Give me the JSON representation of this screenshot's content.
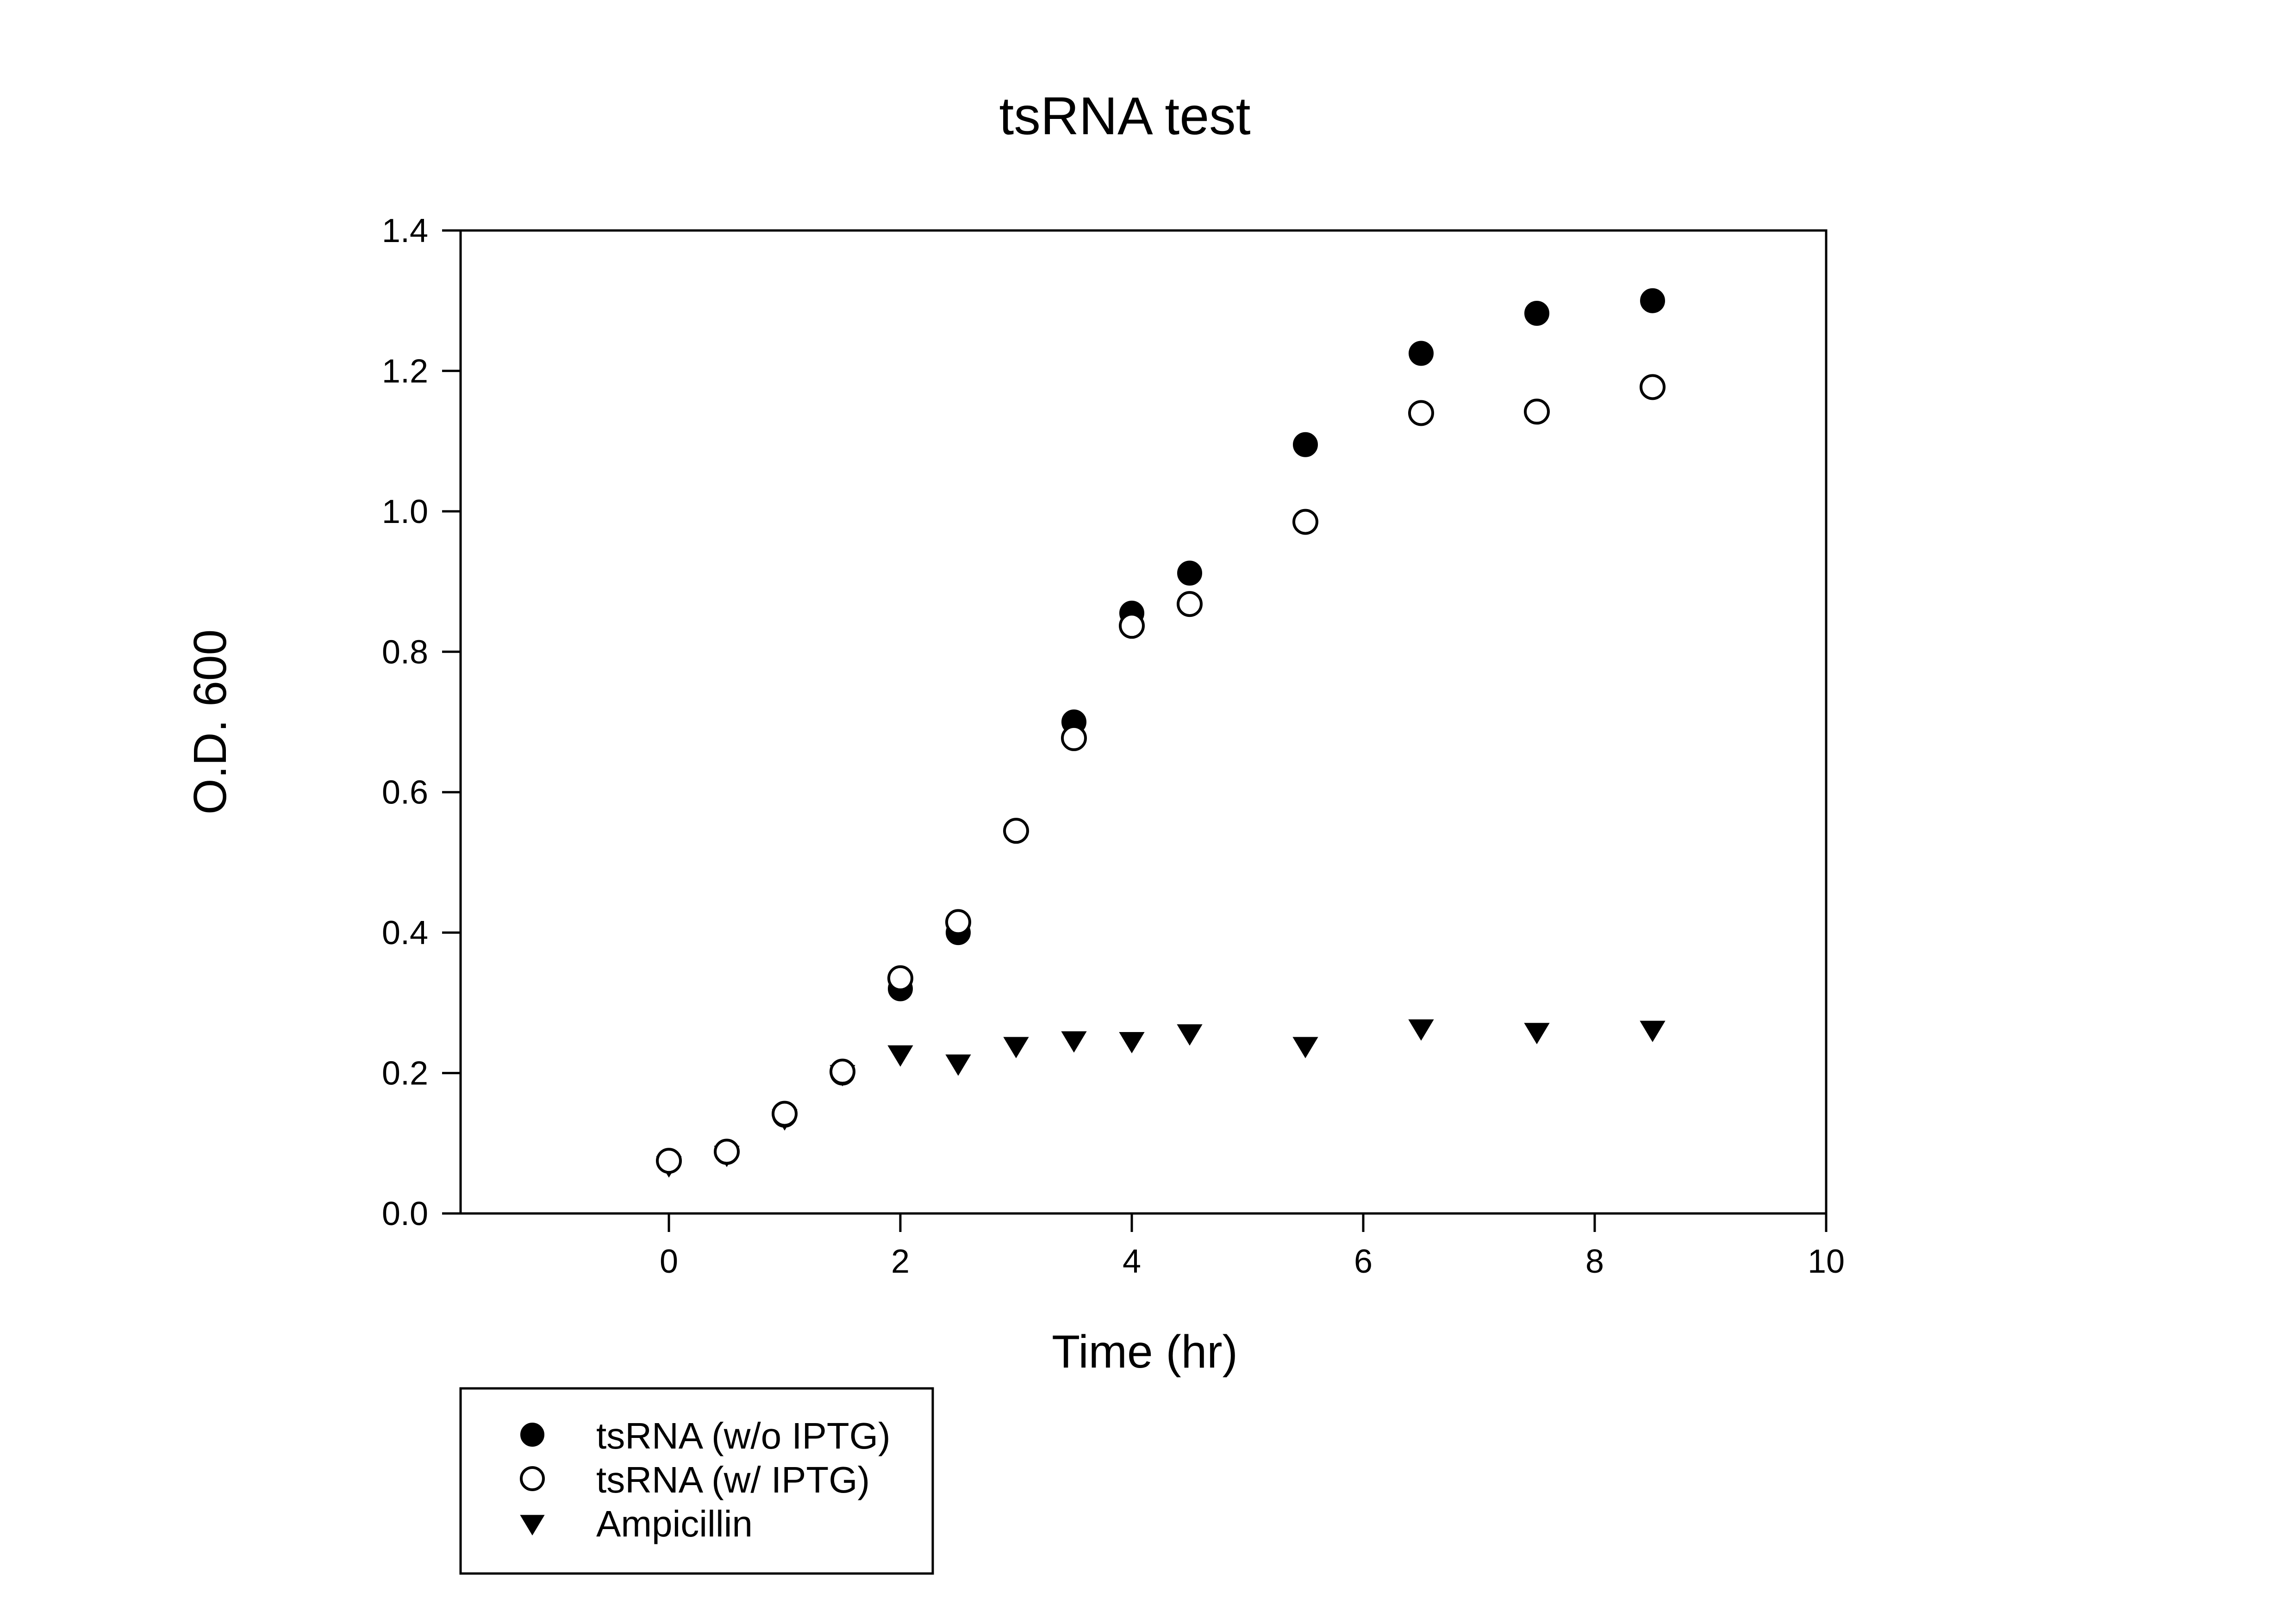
{
  "chart_data": {
    "type": "scatter",
    "title": "tsRNA test",
    "xlabel": "Time (hr)",
    "ylabel": "O.D. 600",
    "xlim": [
      -1.8,
      10
    ],
    "ylim": [
      0,
      1.4
    ],
    "xticks": [
      0,
      2,
      4,
      6,
      8,
      10
    ],
    "yticks": [
      0.0,
      0.2,
      0.4,
      0.6,
      0.8,
      1.0,
      1.2,
      1.4
    ],
    "xtick_labels": [
      "0",
      "2",
      "4",
      "6",
      "8",
      "10"
    ],
    "ytick_labels": [
      "0.0",
      "0.2",
      "0.4",
      "0.6",
      "0.8",
      "1.0",
      "1.2",
      "1.4"
    ],
    "grid": false,
    "legend_position": "bottom-left",
    "series": [
      {
        "name": "tsRNA (w/o IPTG)",
        "marker": "filled-circle",
        "color": "#000000",
        "x": [
          0,
          0.5,
          1,
          1.5,
          2,
          2.5,
          3.5,
          4,
          4.5,
          5.5,
          6.5,
          7.5,
          8.5
        ],
        "y": [
          0.075,
          0.087,
          0.14,
          0.2,
          0.32,
          0.4,
          0.7,
          0.855,
          0.912,
          1.095,
          1.225,
          1.282,
          1.3
        ]
      },
      {
        "name": "tsRNA (w/ IPTG)",
        "marker": "open-circle",
        "color": "#000000",
        "x": [
          0,
          0.5,
          1,
          1.5,
          2,
          2.5,
          3,
          3.5,
          4,
          4.5,
          5.5,
          6.5,
          7.5,
          8.5
        ],
        "y": [
          0.075,
          0.088,
          0.142,
          0.202,
          0.335,
          0.415,
          0.545,
          0.677,
          0.837,
          0.868,
          0.985,
          1.14,
          1.142,
          1.177
        ]
      },
      {
        "name": "Ampicillin",
        "marker": "filled-triangle-down",
        "color": "#000000",
        "x": [
          0,
          0.5,
          1,
          1.5,
          2,
          2.5,
          3,
          3.5,
          4,
          4.5,
          5.5,
          6.5,
          7.5,
          8.5
        ],
        "y": [
          0.07,
          0.085,
          0.137,
          0.2,
          0.228,
          0.215,
          0.24,
          0.248,
          0.247,
          0.258,
          0.24,
          0.265,
          0.26,
          0.263
        ]
      }
    ]
  }
}
